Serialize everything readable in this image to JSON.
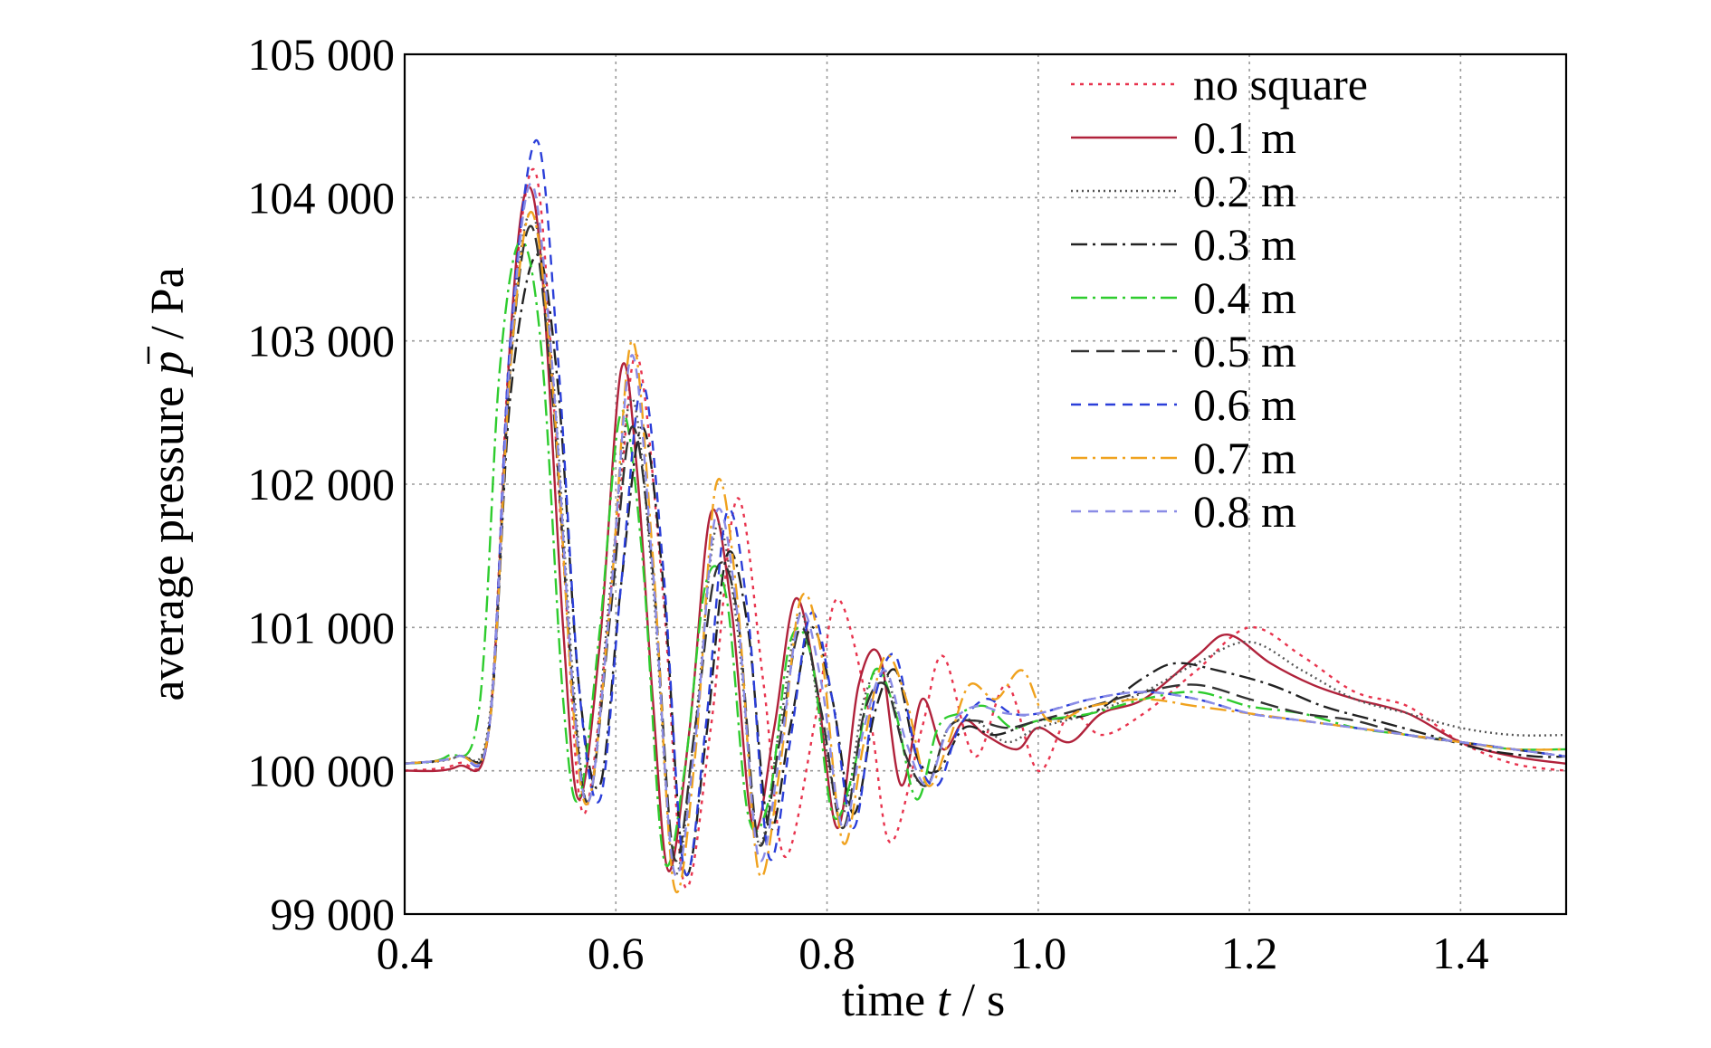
{
  "chart_data": {
    "type": "line",
    "title": "",
    "xlabel_parts": {
      "pre": "time ",
      "var": "t",
      "post": " / s"
    },
    "ylabel_parts": {
      "pre": "average pressure ",
      "var": "p",
      "post": " / Pa"
    },
    "xlim": [
      0.4,
      1.5
    ],
    "ylim": [
      99000,
      105000
    ],
    "xticks": [
      0.4,
      0.6,
      0.8,
      1.0,
      1.2,
      1.4
    ],
    "xtick_labels": [
      "0.4",
      "0.6",
      "0.8",
      "1.0",
      "1.2",
      "1.4"
    ],
    "yticks": [
      99000,
      100000,
      101000,
      102000,
      103000,
      104000,
      105000
    ],
    "ytick_labels": [
      "99 000",
      "100 000",
      "101 000",
      "102 000",
      "103 000",
      "104 000",
      "105 000"
    ],
    "grid": true,
    "legend_position": "top-right",
    "series": [
      {
        "name": "no square",
        "color": "#e8344e",
        "dash": "dotted",
        "x": [
          0.4,
          0.45,
          0.48,
          0.5,
          0.525,
          0.55,
          0.57,
          0.6,
          0.62,
          0.645,
          0.665,
          0.69,
          0.715,
          0.74,
          0.76,
          0.79,
          0.81,
          0.84,
          0.86,
          0.89,
          0.91,
          0.94,
          0.97,
          1.0,
          1.03,
          1.06,
          1.1,
          1.15,
          1.2,
          1.25,
          1.3,
          1.35,
          1.4,
          1.45,
          1.5
        ],
        "y": [
          100000,
          100050,
          100300,
          103000,
          104150,
          101500,
          99700,
          101600,
          102900,
          101200,
          99200,
          100300,
          101900,
          100600,
          99400,
          100400,
          101200,
          100400,
          99500,
          100300,
          100800,
          100100,
          100600,
          100000,
          100400,
          100250,
          100400,
          100700,
          101000,
          100800,
          100550,
          100450,
          100200,
          100050,
          100000
        ]
      },
      {
        "name": "0.1 m",
        "color": "#b0223b",
        "dash": "solid",
        "x": [
          0.4,
          0.45,
          0.48,
          0.5,
          0.515,
          0.53,
          0.55,
          0.565,
          0.585,
          0.605,
          0.62,
          0.635,
          0.65,
          0.67,
          0.69,
          0.71,
          0.73,
          0.75,
          0.77,
          0.79,
          0.81,
          0.83,
          0.85,
          0.87,
          0.89,
          0.91,
          0.93,
          0.95,
          0.98,
          1.0,
          1.03,
          1.06,
          1.1,
          1.15,
          1.18,
          1.22,
          1.26,
          1.3,
          1.35,
          1.4,
          1.45,
          1.5
        ],
        "y": [
          100000,
          100030,
          100300,
          103000,
          104050,
          103500,
          101000,
          99800,
          100900,
          102800,
          102100,
          100500,
          99300,
          100300,
          101800,
          101100,
          99600,
          100300,
          101200,
          100600,
          99600,
          100600,
          100800,
          99900,
          100500,
          100150,
          100350,
          100250,
          100150,
          100300,
          100200,
          100400,
          100500,
          100800,
          100950,
          100750,
          100600,
          100500,
          100400,
          100200,
          100100,
          100050
        ]
      },
      {
        "name": "0.2 m",
        "color": "#555555",
        "dash": "densedot",
        "x": [
          0.4,
          0.45,
          0.48,
          0.5,
          0.52,
          0.54,
          0.56,
          0.575,
          0.595,
          0.615,
          0.635,
          0.655,
          0.675,
          0.695,
          0.715,
          0.735,
          0.755,
          0.775,
          0.795,
          0.815,
          0.835,
          0.855,
          0.875,
          0.895,
          0.915,
          0.94,
          0.97,
          1.0,
          1.05,
          1.1,
          1.15,
          1.2,
          1.25,
          1.3,
          1.35,
          1.4,
          1.45,
          1.5
        ],
        "y": [
          100050,
          100100,
          100350,
          102900,
          103900,
          102800,
          100600,
          99800,
          101300,
          102600,
          101300,
          99300,
          100300,
          101700,
          101000,
          99500,
          100300,
          101100,
          100300,
          99700,
          100500,
          100700,
          100100,
          99900,
          100300,
          100350,
          100200,
          100300,
          100400,
          100550,
          100750,
          100900,
          100700,
          100500,
          100400,
          100300,
          100250,
          100250
        ]
      },
      {
        "name": "0.3 m",
        "color": "#222222",
        "dash": "dashdot",
        "x": [
          0.4,
          0.45,
          0.48,
          0.5,
          0.525,
          0.545,
          0.565,
          0.585,
          0.605,
          0.625,
          0.645,
          0.665,
          0.685,
          0.705,
          0.725,
          0.745,
          0.765,
          0.785,
          0.805,
          0.825,
          0.845,
          0.865,
          0.885,
          0.905,
          0.93,
          0.96,
          1.0,
          1.05,
          1.1,
          1.13,
          1.17,
          1.22,
          1.27,
          1.32,
          1.37,
          1.42,
          1.47,
          1.5
        ],
        "y": [
          100050,
          100100,
          100300,
          102600,
          103600,
          102700,
          100600,
          99900,
          101300,
          102400,
          101300,
          99300,
          100200,
          101500,
          101000,
          99600,
          100300,
          101000,
          100500,
          99700,
          100400,
          100700,
          100100,
          100000,
          100300,
          100250,
          100350,
          100400,
          100650,
          100750,
          100700,
          100600,
          100450,
          100350,
          100250,
          100150,
          100100,
          100100
        ]
      },
      {
        "name": "0.4 m",
        "color": "#2ecc2e",
        "dash": "dashdot",
        "x": [
          0.4,
          0.44,
          0.47,
          0.49,
          0.51,
          0.53,
          0.55,
          0.565,
          0.585,
          0.605,
          0.625,
          0.645,
          0.665,
          0.685,
          0.705,
          0.725,
          0.745,
          0.765,
          0.785,
          0.805,
          0.825,
          0.845,
          0.865,
          0.885,
          0.905,
          0.925,
          0.95,
          0.975,
          1.0,
          1.05,
          1.1,
          1.15,
          1.2,
          1.25,
          1.3,
          1.35,
          1.4,
          1.45,
          1.5
        ],
        "y": [
          100050,
          100100,
          100400,
          102800,
          103700,
          102900,
          100500,
          99800,
          101000,
          102500,
          101500,
          99400,
          100000,
          101300,
          101200,
          99700,
          99800,
          100900,
          100800,
          99700,
          100000,
          100700,
          100400,
          99800,
          100300,
          100400,
          100450,
          100300,
          100350,
          100400,
          100500,
          100550,
          100450,
          100400,
          100300,
          100250,
          100200,
          100150,
          100150
        ]
      },
      {
        "name": "0.5 m",
        "color": "#333333",
        "dash": "longdash",
        "x": [
          0.4,
          0.45,
          0.48,
          0.5,
          0.52,
          0.54,
          0.56,
          0.575,
          0.595,
          0.615,
          0.635,
          0.655,
          0.675,
          0.695,
          0.715,
          0.735,
          0.755,
          0.775,
          0.795,
          0.815,
          0.835,
          0.855,
          0.875,
          0.895,
          0.915,
          0.94,
          0.97,
          1.0,
          1.05,
          1.1,
          1.15,
          1.2,
          1.25,
          1.3,
          1.35,
          1.4,
          1.45,
          1.5
        ],
        "y": [
          100050,
          100100,
          100300,
          102800,
          103800,
          102600,
          100500,
          99800,
          101100,
          102400,
          101400,
          99400,
          100300,
          101400,
          101100,
          99500,
          100200,
          101000,
          100400,
          99600,
          100400,
          100600,
          100100,
          99900,
          100300,
          100350,
          100300,
          100350,
          100450,
          100550,
          100600,
          100500,
          100400,
          100350,
          100250,
          100200,
          100150,
          100100
        ]
      },
      {
        "name": "0.6 m",
        "color": "#2b3fd9",
        "dash": "dashed",
        "x": [
          0.4,
          0.45,
          0.48,
          0.5,
          0.525,
          0.545,
          0.565,
          0.585,
          0.605,
          0.625,
          0.645,
          0.665,
          0.685,
          0.705,
          0.725,
          0.745,
          0.765,
          0.785,
          0.805,
          0.825,
          0.845,
          0.865,
          0.885,
          0.905,
          0.925,
          0.95,
          0.975,
          1.0,
          1.05,
          1.1,
          1.15,
          1.2,
          1.25,
          1.3,
          1.35,
          1.4,
          1.45,
          1.5
        ],
        "y": [
          100050,
          100100,
          100300,
          103000,
          104400,
          102900,
          100600,
          99800,
          101300,
          102700,
          101400,
          99300,
          100300,
          101800,
          101100,
          99400,
          100200,
          101100,
          100500,
          99600,
          100500,
          100800,
          100100,
          99900,
          100300,
          100500,
          100400,
          100400,
          100500,
          100550,
          100500,
          100400,
          100350,
          100300,
          100250,
          100200,
          100150,
          100100
        ]
      },
      {
        "name": "0.7 m",
        "color": "#f0a21e",
        "dash": "dashdot",
        "x": [
          0.4,
          0.45,
          0.48,
          0.5,
          0.52,
          0.54,
          0.56,
          0.575,
          0.595,
          0.615,
          0.635,
          0.655,
          0.675,
          0.695,
          0.715,
          0.735,
          0.755,
          0.775,
          0.795,
          0.815,
          0.835,
          0.855,
          0.875,
          0.895,
          0.915,
          0.935,
          0.96,
          0.985,
          1.01,
          1.05,
          1.1,
          1.15,
          1.2,
          1.25,
          1.3,
          1.35,
          1.4,
          1.45,
          1.5
        ],
        "y": [
          100050,
          100100,
          100300,
          102800,
          103900,
          102700,
          100400,
          99800,
          101200,
          103000,
          101500,
          99200,
          100100,
          102000,
          101200,
          99300,
          100000,
          101200,
          100800,
          99500,
          100200,
          100800,
          100500,
          99900,
          100200,
          100600,
          100500,
          100700,
          100350,
          100450,
          100500,
          100450,
          100400,
          100350,
          100300,
          100250,
          100200,
          100150,
          100150
        ]
      },
      {
        "name": "0.8 m",
        "color": "#8a8ce6",
        "dash": "dashed",
        "x": [
          0.4,
          0.45,
          0.48,
          0.5,
          0.52,
          0.54,
          0.56,
          0.575,
          0.595,
          0.615,
          0.635,
          0.655,
          0.675,
          0.695,
          0.715,
          0.735,
          0.755,
          0.775,
          0.795,
          0.815,
          0.835,
          0.855,
          0.875,
          0.895,
          0.915,
          0.94,
          0.97,
          1.0,
          1.05,
          1.1,
          1.15,
          1.2,
          1.25,
          1.3,
          1.35,
          1.4,
          1.45,
          1.5
        ],
        "y": [
          100050,
          100100,
          100300,
          102900,
          104100,
          102800,
          100500,
          99800,
          101200,
          102900,
          101400,
          99300,
          100200,
          101800,
          101100,
          99400,
          100100,
          101100,
          100600,
          99600,
          100300,
          100700,
          100200,
          99900,
          100300,
          100450,
          100400,
          100400,
          100500,
          100550,
          100500,
          100400,
          100350,
          100300,
          100250,
          100200,
          100150,
          100100
        ]
      }
    ]
  }
}
